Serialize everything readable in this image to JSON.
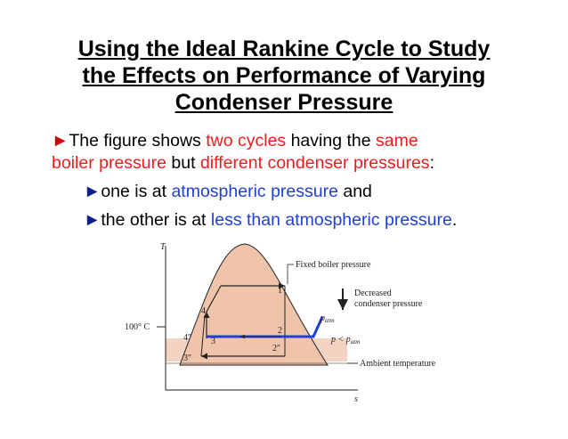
{
  "title": {
    "line1": "Using the Ideal Rankine Cycle to Study",
    "line2": "the Effects on Performance of Varying",
    "line3": "Condenser Pressure"
  },
  "bullet_main": {
    "marker": "►",
    "t1": "The figure shows ",
    "t2": "two cycles",
    "t3": " having the ",
    "t4": "same",
    "t5": "boiler pressure",
    "t6": " but ",
    "t7": "different condenser pressures",
    "t8": ":"
  },
  "sub1": {
    "marker": "►",
    "t1": "one is at ",
    "t2": "atmospheric pressure",
    "t3": " and"
  },
  "sub2": {
    "marker": "►",
    "t1": "the other is at ",
    "t2": "less than atmospheric pressure",
    "t3": "."
  },
  "diagram": {
    "axis_t": "T",
    "axis_s": "s",
    "temp_label": "100° C",
    "fixed_boiler": "Fixed boiler pressure",
    "decreased_1": "Decreased",
    "decreased_2": "condenser pressure",
    "p_atm": "p",
    "p_atm_sub": "atm",
    "p_less": "p < p",
    "p_less_sub": "atm",
    "ambient": "Ambient temperature",
    "pt1": "1",
    "pt2": "2",
    "pt2pp": "2″",
    "pt3": "3",
    "pt3pp": "3″",
    "pt4": "4",
    "pt4pp": "4″"
  },
  "colors": {
    "accent_red": "#ee1c1c",
    "accent_blue": "#1f3fd6",
    "dome_fill": "#f0c9b2",
    "cycle_blue": "#1f3fd6"
  }
}
